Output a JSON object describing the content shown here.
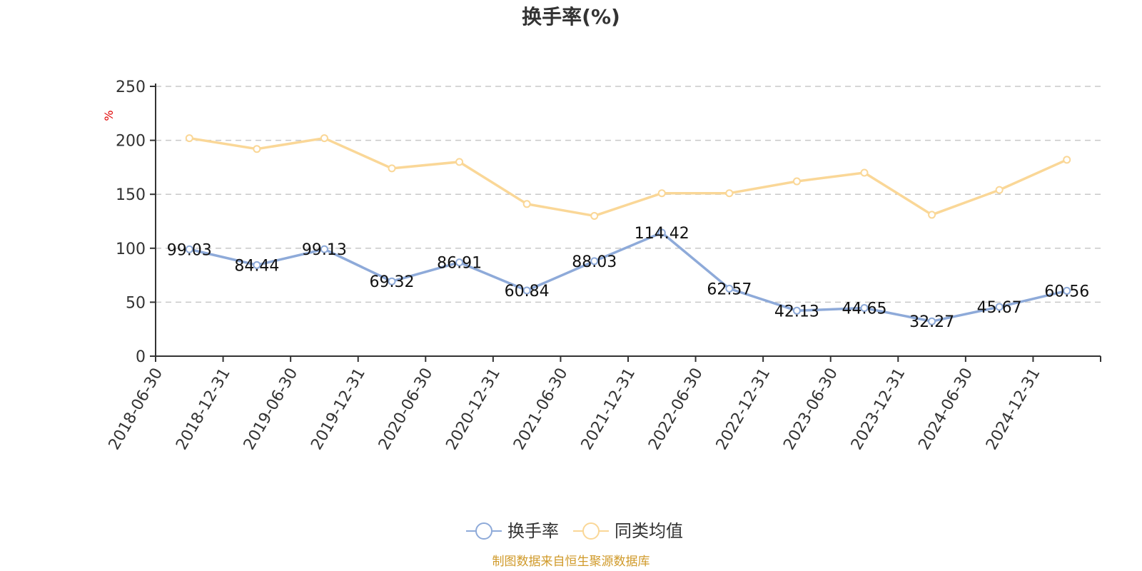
{
  "chart_data": {
    "type": "line",
    "title": "换手率(%)",
    "y_unit": "%",
    "ylim": [
      0,
      250
    ],
    "y_ticks": [
      "0",
      "50",
      "100",
      "150",
      "200",
      "250"
    ],
    "grid": "horizontal dashed",
    "legend_position": "bottom-center",
    "categories": [
      "2018-06-30",
      "2018-12-31",
      "2019-06-30",
      "2019-12-31",
      "2020-06-30",
      "2020-12-31",
      "2021-06-30",
      "2021-12-31",
      "2022-06-30",
      "2022-12-31",
      "2023-06-30",
      "2023-12-31",
      "2024-06-30",
      "2024-12-31"
    ],
    "series": [
      {
        "name": "换手率",
        "color": "#8eaad9",
        "values": [
          99.03,
          84.44,
          99.13,
          69.32,
          86.91,
          60.84,
          88.03,
          114.42,
          62.57,
          42.13,
          44.65,
          32.27,
          45.67,
          60.56
        ],
        "labels": [
          "99.03",
          "84.44",
          "99.13",
          "69.32",
          "86.91",
          "60.84",
          "88.03",
          "114.42",
          "62.57",
          "42.13",
          "44.65",
          "32.27",
          "45.67",
          "60.56"
        ]
      },
      {
        "name": "同类均值",
        "color": "#fad797",
        "values": [
          202,
          192,
          202,
          174,
          180,
          141,
          130,
          151,
          151,
          162,
          170,
          131,
          154,
          182
        ]
      }
    ]
  },
  "source": "制图数据来自恒生聚源数据库"
}
